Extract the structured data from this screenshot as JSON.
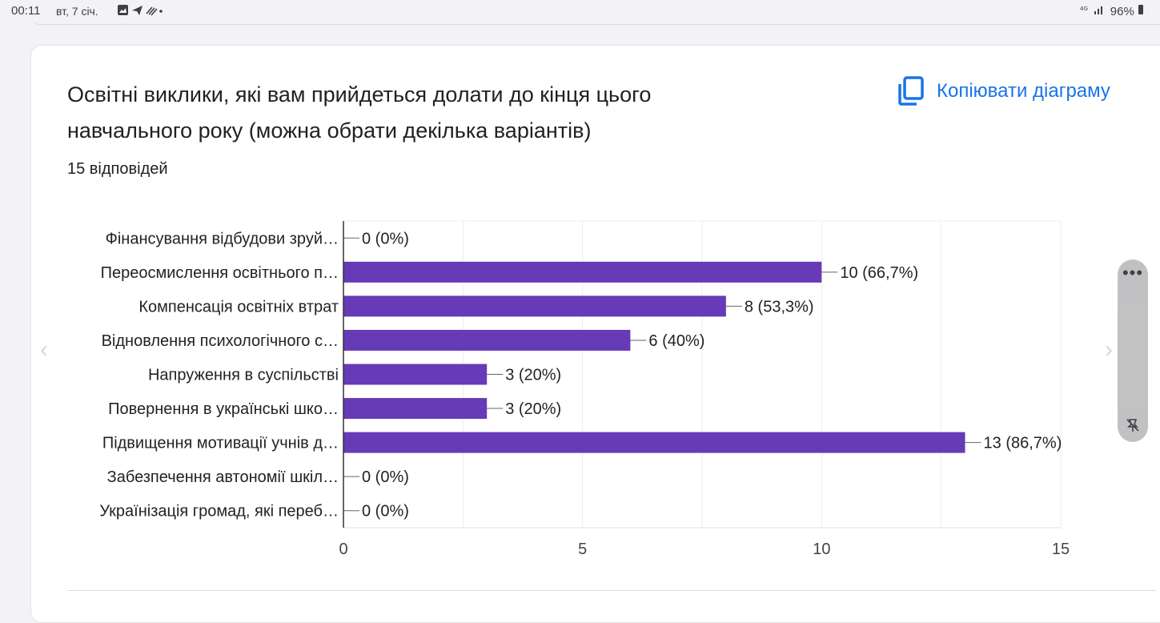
{
  "status_bar": {
    "time": "00:11",
    "date": "вт, 7 січ.",
    "battery": "96%"
  },
  "question": {
    "title_line1": "Освітні виклики, які вам прийдеться долати до кінця цього",
    "title_line2": "навчального року (можна обрати декілька варіантів)",
    "responses": "15 відповідей"
  },
  "copy_button": {
    "label": "Копіювати діаграму"
  },
  "colors": {
    "bar": "#673ab7",
    "accent": "#1a73e8"
  },
  "chart_data": {
    "type": "bar",
    "orientation": "horizontal",
    "categories": [
      "Фінансування відбудови зруй…",
      "Переосмислення освітнього п…",
      "Компенсація освітніх втрат",
      "Відновлення психологічного с…",
      "Напруження в суспільстві",
      "Повернення в українські шко…",
      "Підвищення мотивації учнів д…",
      "Забезпечення автономії шкіл…",
      "Українізація громад, які переб…"
    ],
    "values": [
      0,
      10,
      8,
      6,
      3,
      3,
      13,
      0,
      0
    ],
    "value_labels": [
      "0 (0%)",
      "10 (66,7%)",
      "8 (53,3%)",
      "6 (40%)",
      "3 (20%)",
      "3 (20%)",
      "13 (86,7%)",
      "0 (0%)",
      "0 (0%)"
    ],
    "xlim": [
      0,
      15
    ],
    "x_ticks": [
      0,
      5,
      10,
      15
    ],
    "x_tick_labels": [
      "0",
      "5",
      "10",
      "15"
    ],
    "grid": true
  }
}
